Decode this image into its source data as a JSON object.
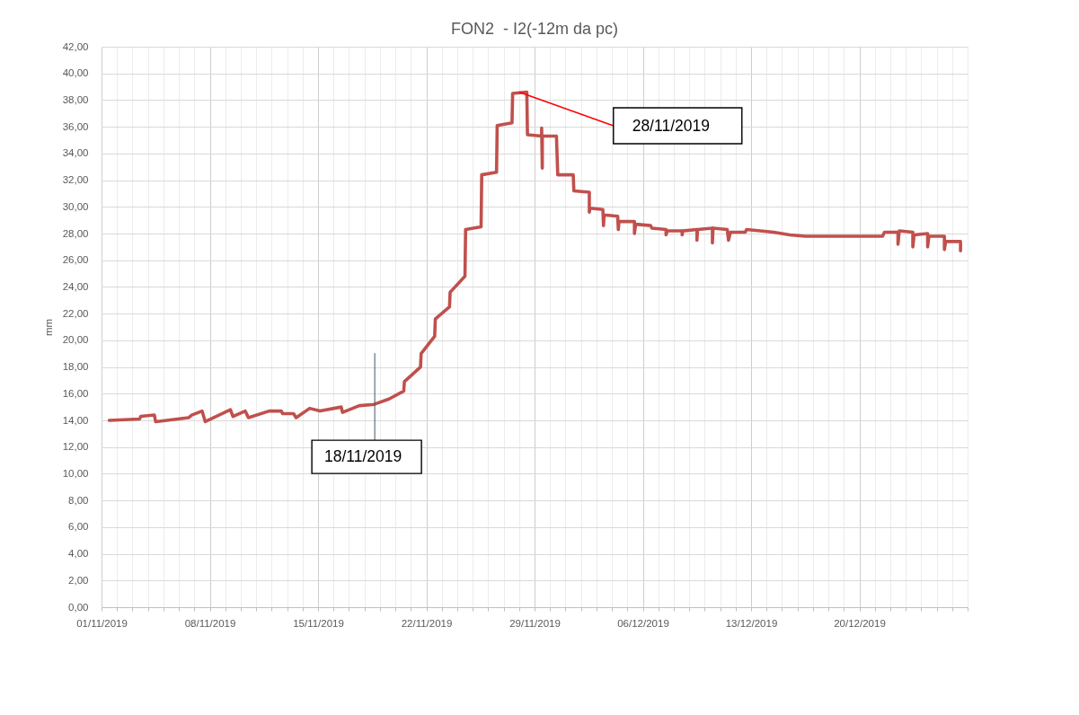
{
  "chart_data": {
    "type": "line",
    "title": "FON2  - I2(-12m da pc)",
    "ylabel": "mm",
    "xlim": [
      "2019-11-01",
      "2019-12-27"
    ],
    "xticks": [
      {
        "value": "2019-11-01",
        "label": "01/11/2019"
      },
      {
        "value": "2019-11-02",
        "label": null
      },
      {
        "value": "2019-11-03",
        "label": null
      },
      {
        "value": "2019-11-04",
        "label": null
      },
      {
        "value": "2019-11-05",
        "label": null
      },
      {
        "value": "2019-11-06",
        "label": null
      },
      {
        "value": "2019-11-07",
        "label": null
      },
      {
        "value": "2019-11-08",
        "label": "08/11/2019"
      },
      {
        "value": "2019-11-09",
        "label": null
      },
      {
        "value": "2019-11-10",
        "label": null
      },
      {
        "value": "2019-11-11",
        "label": null
      },
      {
        "value": "2019-11-12",
        "label": null
      },
      {
        "value": "2019-11-13",
        "label": null
      },
      {
        "value": "2019-11-14",
        "label": null
      },
      {
        "value": "2019-11-15",
        "label": "15/11/2019"
      },
      {
        "value": "2019-11-16",
        "label": null
      },
      {
        "value": "2019-11-17",
        "label": null
      },
      {
        "value": "2019-11-18",
        "label": null
      },
      {
        "value": "2019-11-19",
        "label": null
      },
      {
        "value": "2019-11-20",
        "label": null
      },
      {
        "value": "2019-11-21",
        "label": null
      },
      {
        "value": "2019-11-22",
        "label": "22/11/2019"
      },
      {
        "value": "2019-11-23",
        "label": null
      },
      {
        "value": "2019-11-24",
        "label": null
      },
      {
        "value": "2019-11-25",
        "label": null
      },
      {
        "value": "2019-11-26",
        "label": null
      },
      {
        "value": "2019-11-27",
        "label": null
      },
      {
        "value": "2019-11-28",
        "label": null
      },
      {
        "value": "2019-11-29",
        "label": "29/11/2019"
      },
      {
        "value": "2019-11-30",
        "label": null
      },
      {
        "value": "2019-12-01",
        "label": null
      },
      {
        "value": "2019-12-02",
        "label": null
      },
      {
        "value": "2019-12-03",
        "label": null
      },
      {
        "value": "2019-12-04",
        "label": null
      },
      {
        "value": "2019-12-05",
        "label": null
      },
      {
        "value": "2019-12-06",
        "label": "06/12/2019"
      },
      {
        "value": "2019-12-07",
        "label": null
      },
      {
        "value": "2019-12-08",
        "label": null
      },
      {
        "value": "2019-12-09",
        "label": null
      },
      {
        "value": "2019-12-10",
        "label": null
      },
      {
        "value": "2019-12-11",
        "label": null
      },
      {
        "value": "2019-12-12",
        "label": null
      },
      {
        "value": "2019-12-13",
        "label": "13/12/2019"
      },
      {
        "value": "2019-12-14",
        "label": null
      },
      {
        "value": "2019-12-15",
        "label": null
      },
      {
        "value": "2019-12-16",
        "label": null
      },
      {
        "value": "2019-12-17",
        "label": null
      },
      {
        "value": "2019-12-18",
        "label": null
      },
      {
        "value": "2019-12-19",
        "label": null
      },
      {
        "value": "2019-12-20",
        "label": "20/12/2019"
      },
      {
        "value": "2019-12-21",
        "label": null
      },
      {
        "value": "2019-12-22",
        "label": null
      },
      {
        "value": "2019-12-23",
        "label": null
      },
      {
        "value": "2019-12-24",
        "label": null
      },
      {
        "value": "2019-12-25",
        "label": null
      },
      {
        "value": "2019-12-26",
        "label": null
      },
      {
        "value": "2019-12-27",
        "label": null
      }
    ],
    "ylim": [
      0,
      42
    ],
    "yticks": [
      {
        "value": 0,
        "label": "0,00"
      },
      {
        "value": 2,
        "label": "2,00"
      },
      {
        "value": 4,
        "label": "4,00"
      },
      {
        "value": 6,
        "label": "6,00"
      },
      {
        "value": 8,
        "label": "8,00"
      },
      {
        "value": 10,
        "label": "10,00"
      },
      {
        "value": 12,
        "label": "12,00"
      },
      {
        "value": 14,
        "label": "14,00"
      },
      {
        "value": 16,
        "label": "16,00"
      },
      {
        "value": 18,
        "label": "18,00"
      },
      {
        "value": 20,
        "label": "20,00"
      },
      {
        "value": 22,
        "label": "22,00"
      },
      {
        "value": 24,
        "label": "24,00"
      },
      {
        "value": 26,
        "label": "26,00"
      },
      {
        "value": 28,
        "label": "28,00"
      },
      {
        "value": 30,
        "label": "30,00"
      },
      {
        "value": 32,
        "label": "32,00"
      },
      {
        "value": 34,
        "label": "34,00"
      },
      {
        "value": 36,
        "label": "36,00"
      },
      {
        "value": 38,
        "label": "38,00"
      },
      {
        "value": 40,
        "label": "40,00"
      },
      {
        "value": 42,
        "label": "42,00"
      }
    ],
    "grid": true,
    "x": [
      "2019-11-01T12:00",
      "2019-11-03T11:00",
      "2019-11-03T13:00",
      "2019-11-04T10:00",
      "2019-11-04T12:00",
      "2019-11-06T15:00",
      "2019-11-06T20:00",
      "2019-11-07T12:00",
      "2019-11-07T17:00",
      "2019-11-09T08:00",
      "2019-11-09T12:00",
      "2019-11-10T07:00",
      "2019-11-10T12:00",
      "2019-11-11T20:00",
      "2019-11-12T15:00",
      "2019-11-12T17:00",
      "2019-11-13T10:00",
      "2019-11-13T14:00",
      "2019-11-14T11:00",
      "2019-11-15T03:00",
      "2019-11-16T12:00",
      "2019-11-16T14:00",
      "2019-11-17T16:00",
      "2019-11-18T15:00",
      "2019-11-19T14:00",
      "2019-11-20T13:00",
      "2019-11-20T14:00",
      "2019-11-21T15:00",
      "2019-11-21T16:00",
      "2019-11-22T13:00",
      "2019-11-22T14:00",
      "2019-11-23T12:00",
      "2019-11-23T13:00",
      "2019-11-24T12:00",
      "2019-11-24T13:00",
      "2019-11-25T13:00",
      "2019-11-25T14:00",
      "2019-11-26T13:00",
      "2019-11-26T14:00",
      "2019-11-27T13:00",
      "2019-11-27T14:00",
      "2019-11-28T12:00",
      "2019-11-28T13:00",
      "2019-11-29T11:00",
      "2019-11-29T11:00",
      "2019-11-29T12:00",
      "2019-11-29T12:00",
      "2019-11-30T10:00",
      "2019-11-30T12:00",
      "2019-12-01T12:00",
      "2019-12-01T13:00",
      "2019-12-02T13:00",
      "2019-12-02T13:00",
      "2019-12-02T14:00",
      "2019-12-03T10:00",
      "2019-12-03T11:00",
      "2019-12-03T12:00",
      "2019-12-04T09:00",
      "2019-12-04T10:00",
      "2019-12-04T11:00",
      "2019-12-05T11:00",
      "2019-12-05T11:00",
      "2019-12-05T13:00",
      "2019-12-06T12:00",
      "2019-12-06T14:00",
      "2019-12-07T12:00",
      "2019-12-07T12:00",
      "2019-12-07T14:00",
      "2019-12-08T13:00",
      "2019-12-08T13:00",
      "2019-12-08T14:00",
      "2019-12-09T12:00",
      "2019-12-09T12:00",
      "2019-12-09T13:00",
      "2019-12-10T12:00",
      "2019-12-10T12:00",
      "2019-12-10T13:00",
      "2019-12-11T11:00",
      "2019-12-11T13:00",
      "2019-12-11T16:00",
      "2019-12-12T15:00",
      "2019-12-12T17:00",
      "2019-12-14T11:00",
      "2019-12-15T12:00",
      "2019-12-16T12:00",
      "2019-12-17T11:00",
      "2019-12-20T13:00",
      "2019-12-21T12:00",
      "2019-12-21T15:00",
      "2019-12-22T12:00",
      "2019-12-22T12:00",
      "2019-12-22T14:00",
      "2019-12-23T11:00",
      "2019-12-23T11:00",
      "2019-12-23T13:00",
      "2019-12-24T10:00",
      "2019-12-24T10:00",
      "2019-12-24T12:00",
      "2019-12-25T12:00",
      "2019-12-25T12:00",
      "2019-12-25T14:00",
      "2019-12-26T13:00",
      "2019-12-26T13:00"
    ],
    "series": [
      {
        "color": "#c0504d",
        "values": [
          14.0,
          14.1,
          14.3,
          14.4,
          13.9,
          14.2,
          14.4,
          14.7,
          13.9,
          14.8,
          14.3,
          14.7,
          14.2,
          14.7,
          14.7,
          14.5,
          14.5,
          14.2,
          14.9,
          14.7,
          15.0,
          14.6,
          15.1,
          15.2,
          15.6,
          16.2,
          16.9,
          18.0,
          19.0,
          20.3,
          21.6,
          22.5,
          23.6,
          24.8,
          28.3,
          28.5,
          32.4,
          32.6,
          36.1,
          36.3,
          38.5,
          38.6,
          35.4,
          35.3,
          35.9,
          32.9,
          35.3,
          35.3,
          32.4,
          32.4,
          31.2,
          31.1,
          29.6,
          29.9,
          29.8,
          28.6,
          29.4,
          29.3,
          28.3,
          28.9,
          28.9,
          28.0,
          28.7,
          28.6,
          28.4,
          28.3,
          27.9,
          28.2,
          28.2,
          27.9,
          28.2,
          28.3,
          27.5,
          28.3,
          28.4,
          27.3,
          28.4,
          28.3,
          27.5,
          28.1,
          28.1,
          28.3,
          28.1,
          27.9,
          27.8,
          27.8,
          27.8,
          27.8,
          28.1,
          28.1,
          27.2,
          28.2,
          28.1,
          27.0,
          27.9,
          28.0,
          27.0,
          27.8,
          27.8,
          26.8,
          27.4,
          27.4,
          26.7
        ]
      }
    ],
    "annotations": [
      {
        "text": "18/11/2019",
        "x": "2019-11-18T16:00",
        "y": 15.2
      },
      {
        "text": "28/11/2019",
        "x": "2019-11-28",
        "y": 38.6
      }
    ]
  }
}
